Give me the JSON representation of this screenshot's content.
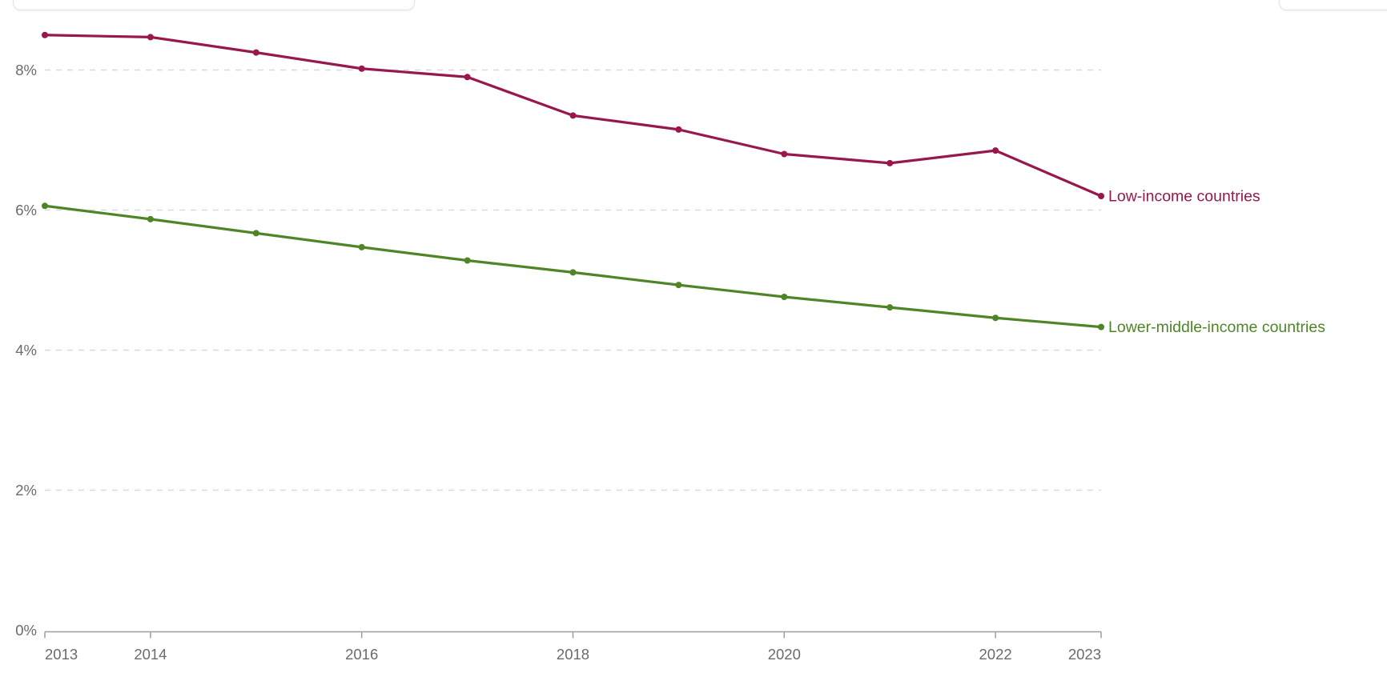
{
  "page": {
    "background": "#ffffff"
  },
  "top_bar": {
    "left_control_label": "",
    "right_control_label": ""
  },
  "chart_data": {
    "type": "line",
    "x": [
      2013,
      2014,
      2015,
      2016,
      2017,
      2018,
      2019,
      2020,
      2021,
      2022,
      2023
    ],
    "series": [
      {
        "name": "Low-income countries",
        "color": "#98184E",
        "values": [
          8.5,
          8.47,
          8.25,
          8.02,
          7.9,
          7.35,
          7.15,
          6.8,
          6.67,
          6.85,
          6.2
        ]
      },
      {
        "name": "Lower-middle-income countries",
        "color": "#4F8527",
        "values": [
          6.06,
          5.87,
          5.67,
          5.47,
          5.28,
          5.11,
          4.93,
          4.76,
          4.61,
          4.46,
          4.33
        ]
      }
    ],
    "title": "",
    "xlabel": "",
    "ylabel": "",
    "ylim": [
      0,
      9
    ],
    "yticks": [
      0,
      2,
      4,
      6,
      8
    ],
    "ytick_format": "percent",
    "ytick_labels": [
      "0%",
      "2%",
      "4%",
      "6%",
      "8%"
    ],
    "xticks_labeled": [
      2013,
      2014,
      2016,
      2018,
      2020,
      2022,
      2023
    ],
    "xtick_labels": [
      "2013",
      "2014",
      "2016",
      "2018",
      "2020",
      "2022",
      "2023"
    ],
    "grid": "horizontal-dashed",
    "legend_position": "series-end-labels"
  },
  "style_colors": {
    "gridline": "#d9d9d9",
    "axis_line": "#9e9e9e",
    "tick_label": "#6b6b6b"
  }
}
